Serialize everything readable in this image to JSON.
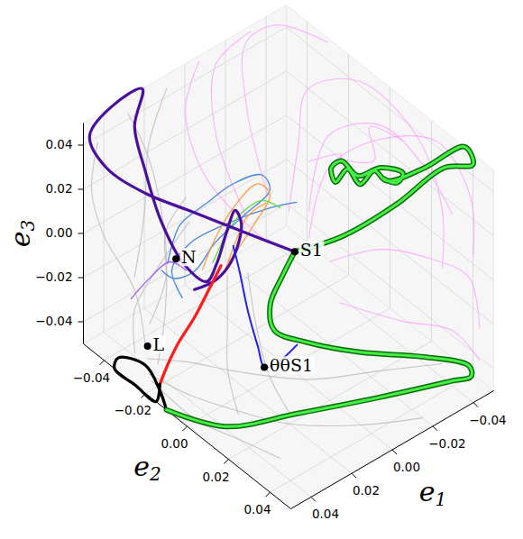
{
  "chart_data": {
    "type": "line3d",
    "xlabel": "e1",
    "ylabel": "e2",
    "zlabel": "e3",
    "xlim": [
      -0.05,
      0.05
    ],
    "ylim": [
      -0.05,
      0.05
    ],
    "zlim": [
      -0.05,
      0.05
    ],
    "xticks": [
      {
        "value": -0.04,
        "label": "−0.04"
      },
      {
        "value": -0.02,
        "label": "−0.02"
      },
      {
        "value": 0,
        "label": "0.00"
      },
      {
        "value": 0.02,
        "label": "0.02"
      },
      {
        "value": 0.04,
        "label": "0.04"
      }
    ],
    "yticks": [
      {
        "value": -0.04,
        "label": "−0.04"
      },
      {
        "value": -0.02,
        "label": "−0.02"
      },
      {
        "value": 0,
        "label": "0.00"
      },
      {
        "value": 0.02,
        "label": "0.02"
      },
      {
        "value": 0.04,
        "label": "0.04"
      }
    ],
    "zticks": [
      {
        "value": -0.04,
        "label": "−0.04"
      },
      {
        "value": -0.02,
        "label": "−0.02"
      },
      {
        "value": 0,
        "label": "0.00"
      },
      {
        "value": 0.02,
        "label": "0.02"
      },
      {
        "value": 0.04,
        "label": "0.04"
      }
    ],
    "grid": true,
    "series": [
      {
        "color": "#ff99ff",
        "line_style": "faint",
        "x": [
          0,
          -0.015,
          -0.03,
          -0.045,
          -0.048,
          -0.045,
          -0.04
        ],
        "y": [
          0,
          -0.01,
          -0.02,
          -0.01,
          0.015,
          0.03,
          0.035
        ],
        "z": [
          0.02,
          0.035,
          0.045,
          0.048,
          0.04,
          0.02,
          0
        ]
      },
      {
        "color": "#ff99ff",
        "line_style": "faint",
        "x": [
          -0.005,
          -0.02,
          -0.035,
          -0.048,
          -0.049,
          -0.045
        ],
        "y": [
          0.005,
          0,
          0.01,
          0.025,
          0.04,
          0.045
        ],
        "z": [
          0.01,
          0.03,
          0.042,
          0.045,
          0.03,
          0.01
        ]
      },
      {
        "color": "#ff99ff",
        "line_style": "faint",
        "x": [
          0,
          -0.01,
          -0.025,
          -0.04,
          -0.05
        ],
        "y": [
          -0.01,
          -0.03,
          -0.045,
          -0.045,
          -0.03
        ],
        "z": [
          0.02,
          0.04,
          0.05,
          0.05,
          0.048
        ]
      },
      {
        "color": "#ff99ff",
        "line_style": "faint",
        "x": [
          0.01,
          0.005,
          -0.01,
          -0.03
        ],
        "y": [
          -0.01,
          -0.03,
          -0.045,
          -0.048
        ],
        "z": [
          0.015,
          0.035,
          0.048,
          0.05
        ]
      },
      {
        "color": "#ff99ff",
        "line_style": "faint",
        "x": [
          -0.01,
          -0.025,
          -0.04,
          -0.048,
          -0.045
        ],
        "y": [
          0.01,
          0.02,
          0.03,
          0.04,
          0.048
        ],
        "z": [
          0,
          0.005,
          0,
          -0.005,
          -0.02
        ]
      },
      {
        "color": "#ff99ff",
        "line_style": "faint",
        "x": [
          -0.008,
          -0.025,
          -0.04,
          -0.047,
          -0.05
        ],
        "y": [
          0.002,
          -0.005,
          0.005,
          0.02,
          0.03
        ],
        "z": [
          0.018,
          0.038,
          0.042,
          0.03,
          0.015
        ]
      },
      {
        "color": "#ff99ff",
        "line_style": "faint",
        "x": [
          0.005,
          0.015,
          0.01,
          -0.005
        ],
        "y": [
          -0.005,
          -0.025,
          -0.04,
          -0.048
        ],
        "z": [
          0.005,
          0.025,
          0.042,
          0.05
        ]
      },
      {
        "color": "#ff99ff",
        "line_style": "faint",
        "x": [
          -0.01,
          -0.025,
          -0.04,
          -0.045
        ],
        "y": [
          0.015,
          0.03,
          0.04,
          0.048
        ],
        "z": [
          -0.015,
          -0.02,
          -0.025,
          -0.035
        ]
      },
      {
        "color": "#ff99ff",
        "line_style": "faint",
        "x": [
          -0.02,
          -0.028,
          -0.022,
          -0.032,
          -0.038,
          -0.044
        ],
        "y": [
          -0.01,
          -0.002,
          0.004,
          0.01,
          0.002,
          0.012
        ],
        "z": [
          0.025,
          0.03,
          0.036,
          0.034,
          0.04,
          0.038
        ]
      },
      {
        "color": "#b5b5b5",
        "line_style": "faint",
        "x": [
          0.045,
          0.04,
          0.045,
          0.048,
          0.045
        ],
        "y": [
          -0.025,
          -0.035,
          -0.045,
          -0.048,
          -0.048
        ],
        "z": [
          -0.035,
          -0.02,
          0,
          0.02,
          0.04
        ]
      },
      {
        "color": "#b5b5b5",
        "line_style": "faint",
        "x": [
          0.044,
          0.03,
          0.02,
          0.02,
          0.03
        ],
        "y": [
          -0.02,
          -0.03,
          -0.04,
          -0.048,
          -0.048
        ],
        "z": [
          -0.04,
          -0.03,
          -0.01,
          0.02,
          0.045
        ]
      },
      {
        "color": "#b5b5b5",
        "line_style": "faint",
        "x": [
          0.046,
          0.04,
          0.03,
          0.02,
          0,
          -0.02
        ],
        "y": [
          -0.022,
          -0.01,
          0.005,
          0.02,
          0.035,
          0.045
        ],
        "z": [
          -0.045,
          -0.048,
          -0.05,
          -0.05,
          -0.05,
          -0.05
        ]
      },
      {
        "color": "#b5b5b5",
        "line_style": "faint",
        "x": [
          0.047,
          0.045,
          0.04,
          0.035
        ],
        "y": [
          -0.02,
          0,
          0.015,
          0.03
        ],
        "z": [
          -0.046,
          -0.05,
          -0.05,
          -0.05
        ]
      },
      {
        "color": "#b5b5b5",
        "line_style": "faint",
        "x": [
          0.045,
          0.035,
          0.02,
          0,
          -0.025,
          -0.045
        ],
        "y": [
          -0.024,
          -0.015,
          -0.005,
          0.01,
          0.02,
          0.03
        ],
        "z": [
          -0.04,
          -0.04,
          -0.045,
          -0.048,
          -0.05,
          -0.05
        ]
      },
      {
        "color": "#b5b5b5",
        "line_style": "faint",
        "x": [
          0.035,
          0.025,
          0.02,
          0.01
        ],
        "y": [
          -0.04,
          -0.045,
          -0.048,
          -0.049
        ],
        "z": [
          -0.02,
          0,
          0.025,
          0.045
        ]
      },
      {
        "color": "#b5b5b5",
        "line_style": "faint",
        "x": [
          0.04,
          0.035,
          0.03,
          0.02
        ],
        "y": [
          -0.028,
          -0.025,
          -0.03,
          -0.03
        ],
        "z": [
          -0.03,
          -0.01,
          0.005,
          0.015
        ]
      },
      {
        "color": "#b5b5b5",
        "line_style": "faint",
        "x": [
          0.045,
          0.035,
          0.02,
          0
        ],
        "y": [
          -0.03,
          -0.04,
          -0.045,
          -0.048
        ],
        "z": [
          -0.042,
          -0.035,
          -0.03,
          -0.02
        ]
      },
      {
        "color": "#b5b5b5",
        "line_style": "faint",
        "x": [
          0.02,
          0.025,
          0.03,
          0.035
        ],
        "y": [
          -0.01,
          -0.005,
          0,
          0.01
        ],
        "z": [
          -0.005,
          -0.02,
          -0.035,
          -0.045
        ]
      },
      {
        "color": "#b5b5b5",
        "line_style": "faint",
        "x": [
          0.015,
          0.018,
          0.02,
          0.02
        ],
        "y": [
          -0.005,
          0.002,
          0.01,
          0.02
        ],
        "z": [
          -0.003,
          -0.02,
          -0.035,
          -0.045
        ]
      },
      {
        "color": "#3d7fe0",
        "line_style": "thin",
        "x": [
          0.035,
          0.029,
          0.02,
          0.011,
          0.002,
          0.001,
          0.01,
          0.02,
          0.028,
          0.034,
          0.037
        ],
        "y": [
          -0.024,
          -0.024,
          -0.02,
          -0.016,
          -0.011,
          -0.008,
          -0.012,
          -0.016,
          -0.018,
          -0.022,
          -0.025
        ],
        "z": [
          -0.002,
          0.012,
          0.02,
          0.027,
          0.03,
          0.025,
          0.015,
          0.005,
          -0.005,
          -0.008,
          -0.005
        ]
      },
      {
        "color": "#3d7fe0",
        "line_style": "thin",
        "x": [
          0.033,
          0.034,
          0.027,
          0.016,
          0.002,
          -0.006
        ],
        "y": [
          -0.019,
          -0.023,
          -0.021,
          -0.015,
          -0.007,
          -0.002
        ],
        "z": [
          -0.015,
          -0.005,
          0.005,
          0.012,
          0.018,
          0.02
        ]
      },
      {
        "color": "#ff9933",
        "line_style": "thin",
        "x": [
          0.025,
          0.019,
          0.011,
          0.004,
          0.001,
          0.008,
          0.017
        ],
        "y": [
          -0.017,
          -0.016,
          -0.014,
          -0.011,
          -0.008,
          -0.009,
          -0.012
        ],
        "z": [
          -0.005,
          0.008,
          0.02,
          0.027,
          0.023,
          0.012,
          -0.002
        ]
      },
      {
        "color": "#ff9933",
        "line_style": "thin",
        "x": [
          0.019,
          0.014,
          0.009,
          0.003
        ],
        "y": [
          -0.012,
          -0.012,
          -0.011,
          -0.008
        ],
        "z": [
          -0.005,
          0.005,
          0.015,
          0.02
        ]
      },
      {
        "color": "#55dd33",
        "line_style": "thin",
        "x": [
          0.022,
          0.015,
          0.01,
          0.004,
          -0.001
        ],
        "y": [
          -0.015,
          -0.014,
          -0.012,
          -0.009,
          -0.005
        ],
        "z": [
          -0.002,
          0.01,
          0.017,
          0.021,
          0.018
        ]
      },
      {
        "color": "#9955ff",
        "line_style": "thin",
        "x": [
          0.048,
          0.041,
          0.034,
          0.03
        ],
        "y": [
          -0.029,
          -0.027,
          -0.024,
          -0.02
        ],
        "z": [
          -0.015,
          -0.008,
          -0.002,
          -0.005
        ]
      },
      {
        "color": "#4b0fa0",
        "line_style": "thick",
        "x": [
          -0.002,
          0.011,
          0.025,
          0.037,
          0.046,
          0.049,
          0.036,
          0.021,
          0.035,
          0.035,
          0.034,
          0.03,
          0.025,
          0.021,
          0.016,
          0.012,
          0.011,
          0.016,
          0.022,
          0.029
        ],
        "y": [
          0.001,
          -0.011,
          -0.023,
          -0.033,
          -0.043,
          -0.048,
          -0.05,
          -0.05,
          -0.04,
          -0.035,
          -0.028,
          -0.021,
          -0.015,
          -0.014,
          -0.014,
          -0.014,
          -0.012,
          -0.011,
          -0.013,
          -0.017
        ],
        "z": [
          0.002,
          0.009,
          0.017,
          0.024,
          0.033,
          0.045,
          0.05,
          0.05,
          0.048,
          0.032,
          0.013,
          -0.003,
          -0.009,
          -0.002,
          0.01,
          0.017,
          0.012,
          0,
          -0.008,
          -0.012
        ]
      },
      {
        "color": "#ff1a1a",
        "line_style": "thick",
        "x": [
          0.02,
          0.025,
          0.031,
          0.037,
          0.041,
          0.045
        ],
        "y": [
          -0.013,
          -0.014,
          -0.015,
          -0.017,
          -0.018,
          -0.018
        ],
        "z": [
          -0.003,
          -0.012,
          -0.022,
          -0.032,
          -0.04,
          -0.047
        ]
      },
      {
        "color": "#000000",
        "line_style": "thick",
        "x": [
          0.045,
          0.05,
          0.05,
          0.05,
          0.045,
          0.04,
          0.045,
          0.05
        ],
        "y": [
          -0.018,
          -0.015,
          -0.025,
          -0.035,
          -0.038,
          -0.03,
          -0.018,
          -0.01
        ],
        "z": [
          -0.047,
          -0.05,
          -0.05,
          -0.05,
          -0.05,
          -0.05,
          -0.05,
          -0.05
        ]
      },
      {
        "color": "#2222ee",
        "line_style": "medium",
        "x": [
          0.003,
          0.011,
          0.014,
          0.015,
          0.015,
          0.015,
          0.015
        ],
        "y": [
          0.007,
          0.004,
          0.002,
          0,
          -0.005,
          -0.009,
          -0.012
        ],
        "z": [
          -0.033,
          -0.04,
          -0.041,
          -0.033,
          -0.02,
          -0.005,
          0.004
        ]
      },
      {
        "color": "#44ee44",
        "line_style": "outlined",
        "x": [
          -0.002,
          -0.017,
          -0.034,
          -0.05,
          -0.05,
          -0.05,
          -0.044,
          -0.033,
          -0.03,
          -0.025,
          -0.023,
          -0.018,
          -0.018,
          -0.021,
          -0.025,
          -0.032,
          -0.038,
          -0.036,
          -0.032
        ],
        "y": [
          0.001,
          0.01,
          0.019,
          0.026,
          0.04,
          0.036,
          0.022,
          0.015,
          0.012,
          0.01,
          0.006,
          0.005,
          0.003,
          0.005,
          0.009,
          0.013,
          0.018,
          0.017,
          0.014
        ],
        "z": [
          0.002,
          0.008,
          0.02,
          0.033,
          0.045,
          0.05,
          0.033,
          0.028,
          0.032,
          0.027,
          0.032,
          0.028,
          0.033,
          0.036,
          0.03,
          0.033,
          0.031,
          0.027,
          0.029
        ]
      },
      {
        "color": "#44ee44",
        "line_style": "outlined",
        "x": [
          -0.002,
          0.003,
          0.008,
          0.009,
          0,
          -0.014,
          -0.032,
          -0.044,
          -0.044,
          -0.038,
          -0.015,
          0.014,
          0.039,
          0.05
        ],
        "y": [
          0.001,
          0,
          -0.001,
          0.002,
          0.009,
          0.021,
          0.034,
          0.044,
          0.045,
          0.041,
          0.029,
          0.018,
          0.008,
          -0.01
        ],
        "z": [
          0.002,
          -0.007,
          -0.018,
          -0.027,
          -0.032,
          -0.035,
          -0.037,
          -0.04,
          -0.044,
          -0.046,
          -0.05,
          -0.05,
          -0.05,
          -0.05
        ]
      }
    ],
    "points": [
      {
        "label": "S1",
        "x": -0.002,
        "y": 0.001,
        "z": 0.002
      },
      {
        "label": "N",
        "x": 0.032,
        "y": -0.023,
        "z": -0.001
      },
      {
        "label": "L",
        "x": 0.046,
        "y": -0.023,
        "z": -0.033
      },
      {
        "label": "θθS1",
        "x": 0.014,
        "y": 0.002,
        "z": -0.041
      }
    ]
  }
}
